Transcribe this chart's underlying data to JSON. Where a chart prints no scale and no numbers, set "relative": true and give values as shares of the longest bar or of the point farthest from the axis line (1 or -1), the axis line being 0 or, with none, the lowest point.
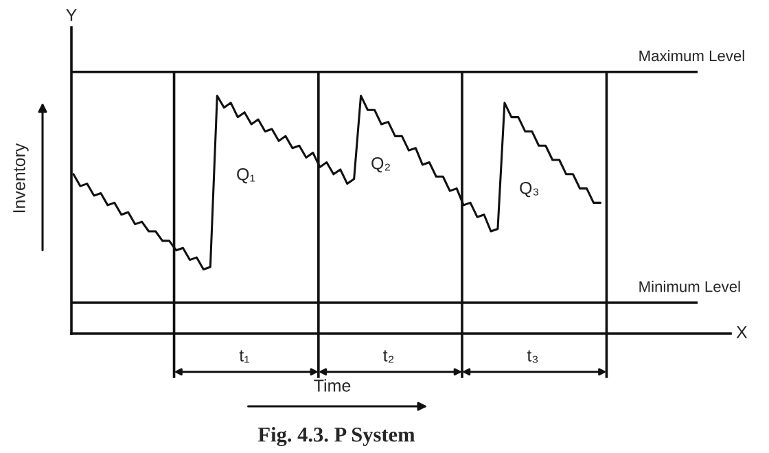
{
  "chart_data": {
    "type": "line",
    "title": "Fig. 4.3. P System",
    "xlabel": "Time",
    "ylabel": "Inventory",
    "relative": true,
    "line_style": "solid",
    "categories": [
      null,
      null,
      null,
      null,
      null,
      null,
      null,
      null,
      null,
      null,
      null,
      null,
      null,
      null,
      null,
      null,
      null,
      null,
      null,
      null,
      null,
      null,
      null,
      null,
      null,
      null,
      null,
      null,
      null,
      null,
      null,
      null,
      null,
      null,
      null,
      null,
      null,
      null,
      null,
      null,
      null,
      null,
      null,
      null,
      null,
      null,
      null,
      null,
      null,
      null,
      null,
      null,
      null,
      null,
      null,
      null,
      null,
      null,
      null,
      null,
      null,
      null,
      null,
      null,
      null,
      null,
      null,
      null,
      null,
      null,
      null,
      null,
      null,
      null,
      null,
      null,
      null,
      null
    ],
    "series": [
      {
        "color": "#111111",
        "values": [
          0.67,
          0.62,
          0.63,
          0.58,
          0.59,
          0.54,
          0.55,
          0.5,
          0.51,
          0.46,
          0.47,
          0.43,
          0.43,
          0.39,
          0.39,
          0.35,
          0.36,
          0.31,
          0.32,
          0.27,
          0.28,
          1.0,
          0.95,
          0.97,
          0.91,
          0.93,
          0.88,
          0.9,
          0.85,
          0.86,
          0.81,
          0.83,
          0.78,
          0.79,
          0.74,
          0.76,
          0.7,
          0.72,
          0.67,
          0.69,
          0.63,
          0.65,
          1.0,
          0.94,
          0.94,
          0.88,
          0.89,
          0.83,
          0.83,
          0.77,
          0.78,
          0.71,
          0.72,
          0.66,
          0.66,
          0.6,
          0.61,
          0.54,
          0.55,
          0.49,
          0.5,
          0.43,
          0.44,
          0.97,
          0.91,
          0.91,
          0.85,
          0.85,
          0.79,
          0.79,
          0.73,
          0.73,
          0.67,
          0.67,
          0.61,
          0.61,
          0.55,
          0.55
        ]
      }
    ],
    "ref_lines": [
      {
        "axis": "y",
        "value": 1.1,
        "label": "Maximum Level",
        "color": "#111111"
      },
      {
        "axis": "y",
        "value": 0.13,
        "label": "Minimum Level",
        "color": "#111111"
      }
    ],
    "annotations": [
      "Y",
      "X",
      "Q₁",
      "Q₂",
      "Q₃",
      "t₁",
      "t₂",
      "t₃"
    ]
  }
}
